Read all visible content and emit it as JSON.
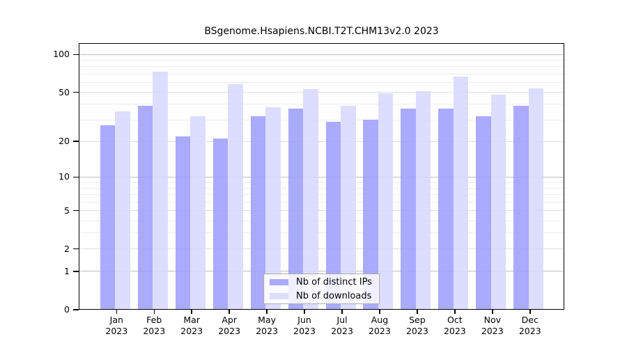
{
  "title": "BSgenome.Hsapiens.NCBI.T2T.CHM13v2.0 2023",
  "chart_data": {
    "type": "bar",
    "title": "BSgenome.Hsapiens.NCBI.T2T.CHM13v2.0 2023",
    "scale": "log1p",
    "grid": true,
    "legend_position": "bottom-center",
    "categories": [
      "Jan",
      "Feb",
      "Mar",
      "Apr",
      "May",
      "Jun",
      "Jul",
      "Aug",
      "Sep",
      "Oct",
      "Nov",
      "Dec"
    ],
    "year": "2023",
    "series": [
      {
        "name": "Nb of distinct IPs",
        "color": "#AAAAFF",
        "values": [
          27,
          39,
          22,
          21,
          32,
          37,
          29,
          30,
          37,
          37,
          32,
          39
        ]
      },
      {
        "name": "Nb of downloads",
        "color": "#DDDDFF",
        "values": [
          35,
          73,
          32,
          58,
          38,
          53,
          39,
          49,
          51,
          67,
          48,
          54
        ]
      }
    ],
    "yticks": [
      0,
      1,
      2,
      5,
      10,
      20,
      50,
      100
    ],
    "minor_gridlines": [
      3,
      4,
      6,
      7,
      8,
      9,
      30,
      40,
      60,
      70,
      80,
      90
    ],
    "ylim": [
      0,
      123
    ],
    "xlabel": "",
    "ylabel": ""
  }
}
